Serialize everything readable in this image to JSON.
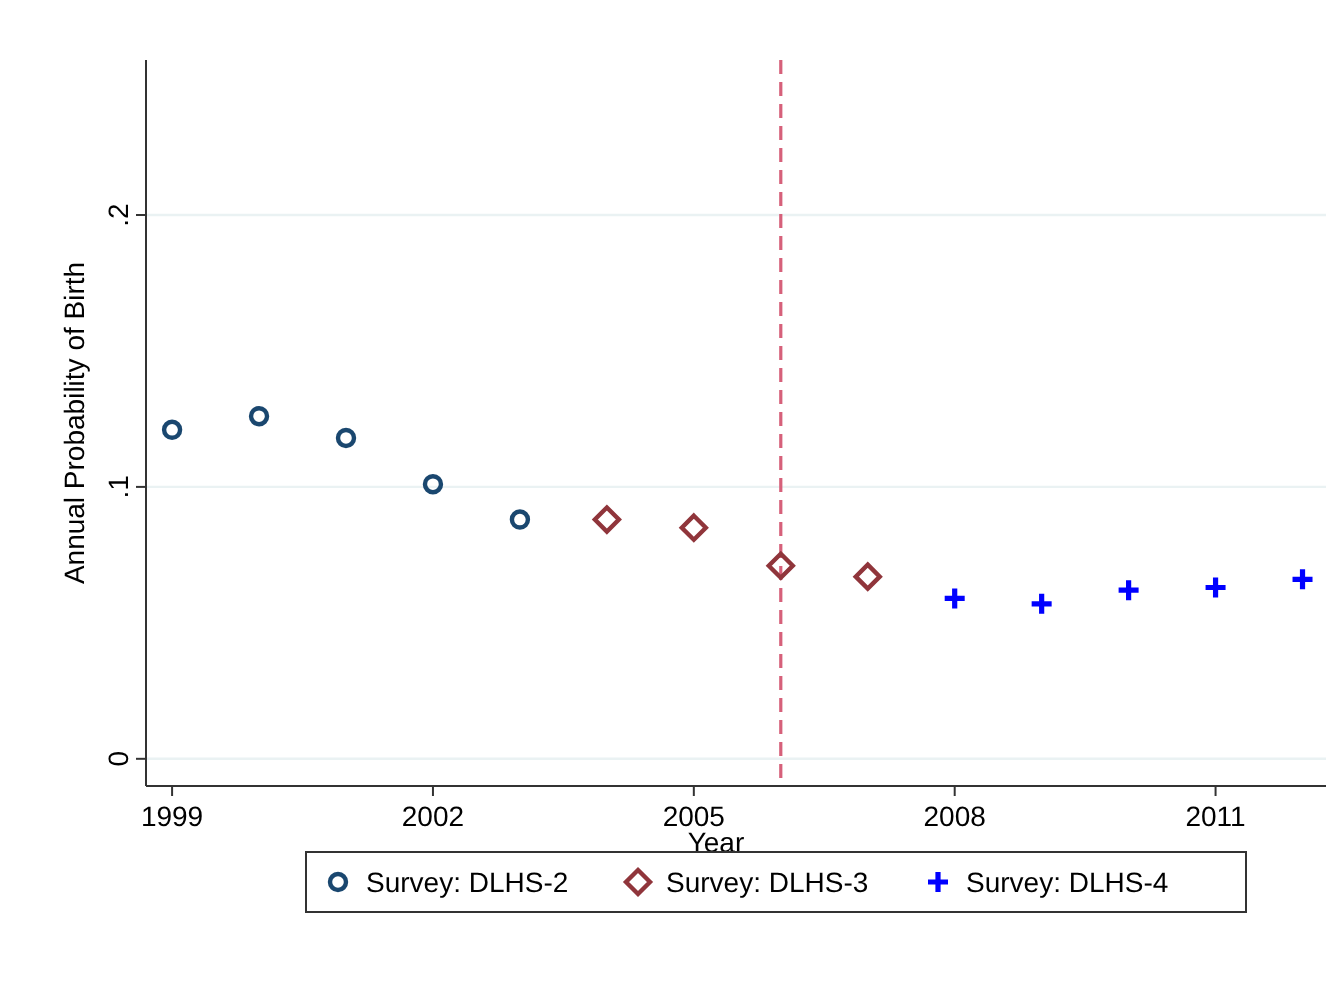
{
  "chart_data": {
    "type": "scatter",
    "xlabel": "Year",
    "ylabel": "Annual Probability of Birth",
    "xlim": [
      1998.7,
      2012.27
    ],
    "xticks": [
      1999,
      2002,
      2005,
      2008,
      2011
    ],
    "ylim": [
      -0.01,
      0.257
    ],
    "yticks": [
      {
        "value": 0,
        "label": "0"
      },
      {
        "value": 0.1,
        "label": ".1"
      },
      {
        "value": 0.2,
        "label": ".2"
      }
    ],
    "grid": "y",
    "legend": "bottom",
    "ref_lines": [
      {
        "axis": "x",
        "value": 2006,
        "color": "#d6607a",
        "line_style": "dashed"
      }
    ],
    "series": [
      {
        "name": "Survey: DLHS-2",
        "color": "#1a476f",
        "marker": "circle",
        "x": [
          1999,
          2000,
          2001,
          2002,
          2003
        ],
        "values": [
          0.121,
          0.126,
          0.118,
          0.101,
          0.088
        ]
      },
      {
        "name": "Survey: DLHS-3",
        "color": "#90353b",
        "marker": "diamond",
        "x": [
          2004,
          2005,
          2006,
          2007
        ],
        "values": [
          0.088,
          0.085,
          0.071,
          0.067
        ]
      },
      {
        "name": "Survey: DLHS-4",
        "color": "#0000ff",
        "marker": "cross",
        "x": [
          2008,
          2009,
          2010,
          2011,
          2012
        ],
        "values": [
          0.059,
          0.057,
          0.062,
          0.063,
          0.066
        ]
      }
    ]
  }
}
